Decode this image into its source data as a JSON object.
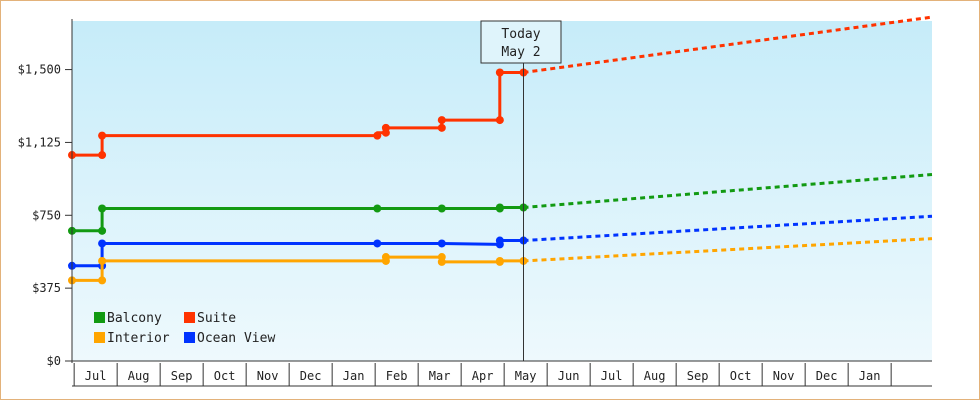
{
  "chart_data": {
    "type": "line",
    "today_label_line1": "Today",
    "today_label_line2": "May 2",
    "y_ticks": [
      "$0",
      "$375",
      "$750",
      "$1,125",
      "$1,500"
    ],
    "y_tick_values": [
      0,
      375,
      750,
      1125,
      1500
    ],
    "ylim": [
      0,
      1750
    ],
    "x_tick_labels": [
      "Jul",
      "Aug",
      "Sep",
      "Oct",
      "Nov",
      "Dec",
      "Jan",
      "Feb",
      "Mar",
      "Apr",
      "May",
      "Jun",
      "Jul",
      "Aug",
      "Sep",
      "Oct",
      "Nov",
      "Dec",
      "Jan"
    ],
    "x_range_months": [
      0,
      20
    ],
    "x_tick_months": [
      0.55,
      1.55,
      2.55,
      3.55,
      4.55,
      5.55,
      6.55,
      7.55,
      8.55,
      9.55,
      10.55,
      11.55,
      12.55,
      13.55,
      14.55,
      15.55,
      16.55,
      17.55,
      18.55
    ],
    "today_month": 10.5,
    "legend": [
      {
        "name": "Balcony",
        "color": "#129a12"
      },
      {
        "name": "Suite",
        "color": "#ff3300"
      },
      {
        "name": "Interior",
        "color": "#ffa500"
      },
      {
        "name": "Ocean View",
        "color": "#0033ff"
      }
    ],
    "series": [
      {
        "name": "Suite",
        "color": "#ff3300",
        "actual": [
          [
            0,
            1060
          ],
          [
            0.7,
            1060
          ],
          [
            0.7,
            1160
          ],
          [
            7.1,
            1160
          ],
          [
            7.1,
            1175
          ],
          [
            7.3,
            1175
          ],
          [
            7.3,
            1200
          ],
          [
            8.6,
            1200
          ],
          [
            8.6,
            1240
          ],
          [
            9.95,
            1240
          ],
          [
            9.95,
            1485
          ],
          [
            10.5,
            1485
          ]
        ],
        "markers": [
          [
            0,
            1060
          ],
          [
            0.7,
            1060
          ],
          [
            0.7,
            1160
          ],
          [
            7.1,
            1160
          ],
          [
            7.3,
            1175
          ],
          [
            7.3,
            1200
          ],
          [
            8.6,
            1200
          ],
          [
            8.6,
            1240
          ],
          [
            9.95,
            1240
          ],
          [
            9.95,
            1485
          ],
          [
            10.5,
            1485
          ]
        ],
        "forecast": [
          [
            10.5,
            1485
          ],
          [
            20,
            1770
          ]
        ]
      },
      {
        "name": "Balcony",
        "color": "#129a12",
        "actual": [
          [
            0,
            670
          ],
          [
            0.7,
            670
          ],
          [
            0.7,
            785
          ],
          [
            7.1,
            785
          ],
          [
            8.6,
            785
          ],
          [
            9.95,
            785
          ],
          [
            9.95,
            790
          ],
          [
            10.5,
            790
          ]
        ],
        "markers": [
          [
            0,
            670
          ],
          [
            0.7,
            670
          ],
          [
            0.7,
            785
          ],
          [
            7.1,
            785
          ],
          [
            8.6,
            785
          ],
          [
            9.95,
            785
          ],
          [
            9.95,
            790
          ],
          [
            10.5,
            790
          ]
        ],
        "forecast": [
          [
            10.5,
            790
          ],
          [
            20,
            960
          ]
        ]
      },
      {
        "name": "Ocean View",
        "color": "#0033ff",
        "actual": [
          [
            0,
            490
          ],
          [
            0.7,
            490
          ],
          [
            0.7,
            605
          ],
          [
            7.1,
            605
          ],
          [
            8.6,
            605
          ],
          [
            9.95,
            600
          ],
          [
            9.95,
            620
          ],
          [
            10.5,
            620
          ]
        ],
        "markers": [
          [
            0,
            490
          ],
          [
            0.7,
            490
          ],
          [
            0.7,
            605
          ],
          [
            7.1,
            605
          ],
          [
            8.6,
            605
          ],
          [
            9.95,
            600
          ],
          [
            9.95,
            620
          ],
          [
            10.5,
            620
          ]
        ],
        "forecast": [
          [
            10.5,
            620
          ],
          [
            20,
            745
          ]
        ]
      },
      {
        "name": "Interior",
        "color": "#ffa500",
        "actual": [
          [
            0,
            415
          ],
          [
            0.7,
            415
          ],
          [
            0.7,
            515
          ],
          [
            7.3,
            515
          ],
          [
            7.3,
            535
          ],
          [
            8.6,
            535
          ],
          [
            8.6,
            510
          ],
          [
            9.95,
            510
          ],
          [
            9.95,
            515
          ],
          [
            10.5,
            515
          ]
        ],
        "markers": [
          [
            0,
            415
          ],
          [
            0.7,
            415
          ],
          [
            0.7,
            515
          ],
          [
            7.3,
            515
          ],
          [
            7.3,
            535
          ],
          [
            8.6,
            535
          ],
          [
            8.6,
            510
          ],
          [
            9.95,
            510
          ],
          [
            9.95,
            515
          ],
          [
            10.5,
            515
          ]
        ],
        "forecast": [
          [
            10.5,
            515
          ],
          [
            20,
            630
          ]
        ]
      }
    ],
    "grid": false,
    "legend_position": "bottom-left"
  }
}
